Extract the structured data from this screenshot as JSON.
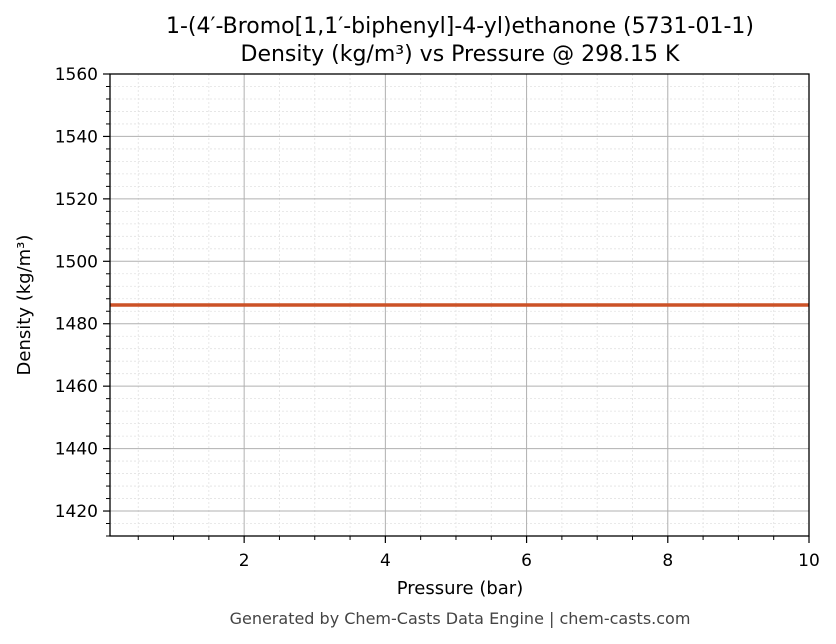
{
  "chart_data": {
    "type": "line",
    "title": "1-(4′-Bromo[1,1′-biphenyl]-4-yl)ethanone (5731-01-1)",
    "subtitle": "Density (kg/m³) vs Pressure @ 298.15 K",
    "xlabel": "Pressure (bar)",
    "ylabel": "Density (kg/m³)",
    "xlim": [
      0.1,
      10
    ],
    "ylim": [
      1412,
      1560
    ],
    "xticks": [
      2,
      4,
      6,
      8,
      10
    ],
    "yticks": [
      1420,
      1440,
      1460,
      1480,
      1500,
      1520,
      1540,
      1560
    ],
    "grid": true,
    "series": [
      {
        "color": "#cc5227",
        "x": [
          0.1,
          10
        ],
        "y": [
          1486,
          1486
        ]
      }
    ]
  },
  "footer": "Generated by Chem-Casts Data Engine | chem-casts.com"
}
